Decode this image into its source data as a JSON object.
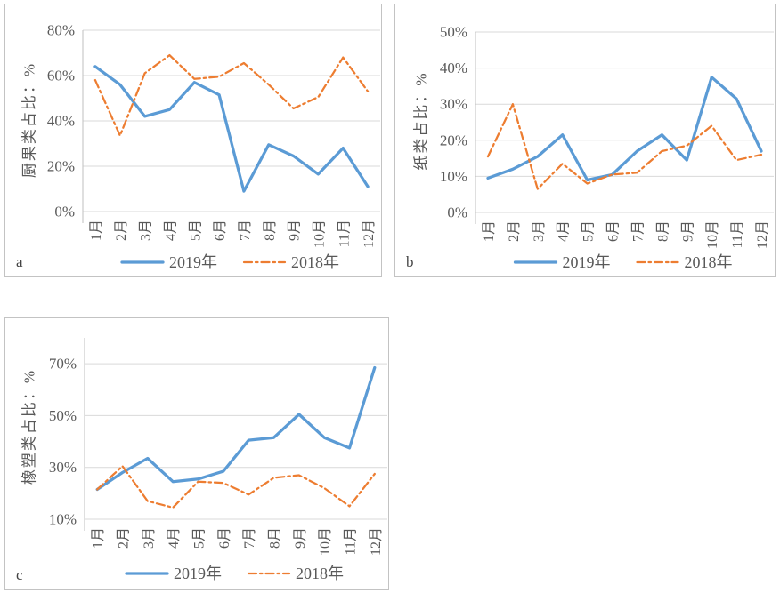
{
  "colors": {
    "series_2019": "#5B9BD5",
    "series_2018": "#ED7D31",
    "gridline": "#D9D9D9",
    "axis_line": "#BFBFBF",
    "tick_text": "#595959",
    "panel_border": "#C3C3C3",
    "background": "#FFFFFF"
  },
  "chart_data": [
    {
      "type": "line",
      "panel_label": "a",
      "ylabel": "厨果类占比：%",
      "xlabel": "",
      "categories": [
        "1月",
        "2月",
        "3月",
        "4月",
        "5月",
        "6月",
        "7月",
        "8月",
        "9月",
        "10月",
        "11月",
        "12月"
      ],
      "ylim": [
        0,
        80
      ],
      "y_tick_step": 20,
      "y_tick_suffix": "%",
      "grid": true,
      "legend_position": "bottom",
      "series": [
        {
          "name": "2019年",
          "line_style": "solid",
          "color": "#5B9BD5",
          "values": [
            64,
            56,
            42,
            45,
            57,
            51.5,
            9,
            29.5,
            24.5,
            16.5,
            28,
            11
          ]
        },
        {
          "name": "2018年",
          "line_style": "dash-dot",
          "color": "#ED7D31",
          "values": [
            58,
            33.5,
            61,
            69,
            58.5,
            59.5,
            65.5,
            56,
            45.5,
            50.5,
            68,
            53
          ]
        }
      ]
    },
    {
      "type": "line",
      "panel_label": "b",
      "ylabel": "纸类占比：%",
      "xlabel": "",
      "categories": [
        "1月",
        "2月",
        "3月",
        "4月",
        "5月",
        "6月",
        "7月",
        "8月",
        "9月",
        "10月",
        "11月",
        "12月"
      ],
      "ylim": [
        0,
        50
      ],
      "y_tick_step": 10,
      "y_tick_suffix": "%",
      "grid": true,
      "legend_position": "bottom",
      "series": [
        {
          "name": "2019年",
          "line_style": "solid",
          "color": "#5B9BD5",
          "values": [
            9.5,
            12,
            15.5,
            21.5,
            9,
            10.5,
            17,
            21.5,
            14.5,
            37.5,
            31.5,
            17
          ]
        },
        {
          "name": "2018年",
          "line_style": "dash-dot",
          "color": "#ED7D31",
          "values": [
            15.5,
            30,
            6.5,
            13.5,
            8,
            10.5,
            11,
            17,
            18.5,
            24,
            14.5,
            16
          ]
        }
      ]
    },
    {
      "type": "line",
      "panel_label": "c",
      "ylabel": "橡塑类占比：%",
      "xlabel": "",
      "categories": [
        "1月",
        "2月",
        "3月",
        "4月",
        "5月",
        "6月",
        "7月",
        "8月",
        "9月",
        "10月",
        "11月",
        "12月"
      ],
      "ylim": [
        10,
        80
      ],
      "y_tick_step": 20,
      "y_tick_suffix": "%",
      "grid": true,
      "legend_position": "bottom",
      "series": [
        {
          "name": "2019年",
          "line_style": "solid",
          "color": "#5B9BD5",
          "values": [
            21.5,
            28,
            33.5,
            24.5,
            25.5,
            28.5,
            40.5,
            41.5,
            50.5,
            41.5,
            37.5,
            68.5
          ]
        },
        {
          "name": "2018年",
          "line_style": "dash-dot",
          "color": "#ED7D31",
          "values": [
            21.5,
            30.5,
            17,
            14.5,
            24.5,
            24,
            19.5,
            26,
            27,
            22,
            15,
            27.5
          ]
        }
      ]
    }
  ]
}
